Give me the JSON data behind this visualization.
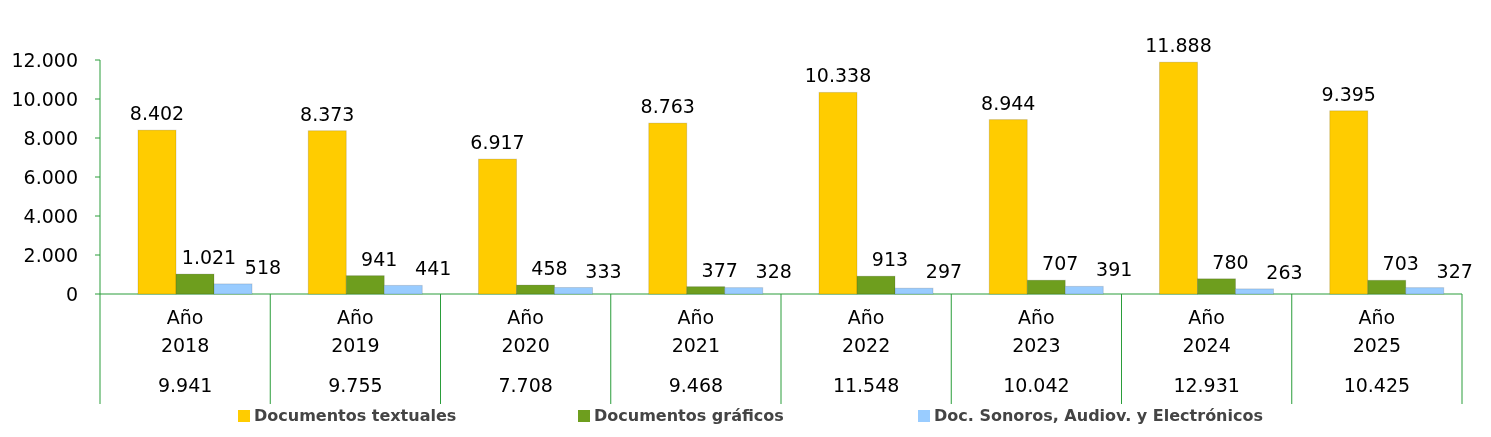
{
  "chart_data": {
    "type": "bar",
    "categories": [
      "Año 2018",
      "Año 2019",
      "Año 2020",
      "Año 2021",
      "Año 2022",
      "Año 2023",
      "Año 2024",
      "Año 2025"
    ],
    "series": [
      {
        "name": "Documentos textuales",
        "color": "#ffcc00",
        "values": [
          8402,
          8373,
          6917,
          8763,
          10338,
          8944,
          11888,
          9395
        ],
        "value_labels": [
          "8.402",
          "8.373",
          "6.917",
          "8.763",
          "10.338",
          "8.944",
          "11.888",
          "9.395"
        ]
      },
      {
        "name": "Documentos gráficos",
        "color": "#6e9e1e",
        "values": [
          1021,
          941,
          458,
          377,
          913,
          707,
          780,
          703
        ],
        "value_labels": [
          "1.021",
          "941",
          "458",
          "377",
          "913",
          "707",
          "780",
          "703"
        ]
      },
      {
        "name": "Doc. Sonoros, Audiov. y Electrónicos",
        "color": "#99ccff",
        "values": [
          518,
          441,
          333,
          328,
          297,
          391,
          263,
          327
        ],
        "value_labels": [
          "518",
          "441",
          "333",
          "328",
          "297",
          "391",
          "263",
          "327"
        ]
      }
    ],
    "annotations": [
      "9.941",
      "9.755",
      "7.708",
      "9.468",
      "11.548",
      "10.042",
      "12.931",
      "10.425"
    ],
    "ylim": [
      0,
      12000
    ],
    "yticks": [
      {
        "value": 0,
        "label": "0"
      },
      {
        "value": 2000,
        "label": "2.000"
      },
      {
        "value": 4000,
        "label": "4.000"
      },
      {
        "value": 6000,
        "label": "6.000"
      },
      {
        "value": 8000,
        "label": "8.000"
      },
      {
        "value": 10000,
        "label": "10.000"
      },
      {
        "value": 12000,
        "label": "12.000"
      }
    ],
    "legend": "bottom"
  }
}
